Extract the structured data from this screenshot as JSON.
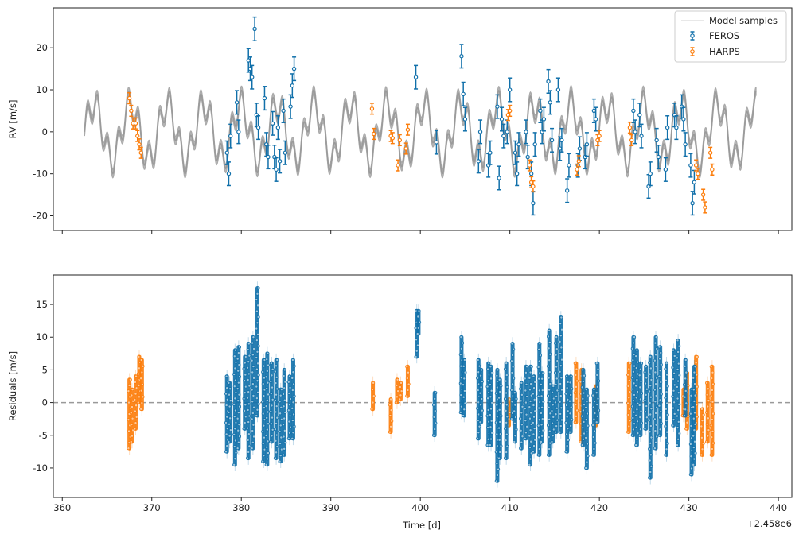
{
  "chart_data": [
    {
      "type": "scatter",
      "panel": "rv",
      "title": "",
      "xlabel": "",
      "ylabel": "RV [m/s]",
      "xlim": [
        359,
        441.5
      ],
      "ylim": [
        -23.5,
        29.5
      ],
      "yticks": [
        -20,
        -10,
        0,
        10,
        20
      ],
      "xticks": [
        360,
        370,
        380,
        390,
        400,
        410,
        420,
        430,
        440
      ],
      "grid": false,
      "legend_position": "top-right",
      "legend": [
        "Model samples",
        "FEROS",
        "HARPS"
      ],
      "series": [
        {
          "name": "FEROS",
          "color": "#1170aa",
          "x": [
            378.4,
            378.6,
            378.8,
            379.5,
            379.7,
            380.8,
            381.0,
            381.2,
            381.5,
            381.7,
            381.9,
            382.6,
            382.8,
            383.0,
            383.5,
            383.7,
            383.9,
            384.1,
            384.3,
            384.7,
            384.9,
            385.5,
            385.7,
            385.9,
            399.5,
            401.8,
            404.6,
            404.8,
            405.0,
            406.5,
            406.7,
            407.6,
            407.8,
            408.6,
            408.8,
            409.1,
            409.3,
            409.7,
            410.0,
            410.6,
            410.8,
            411.0,
            411.8,
            412.0,
            412.4,
            412.6,
            412.8,
            413.4,
            413.6,
            413.8,
            414.3,
            414.5,
            414.7,
            415.4,
            415.6,
            415.8,
            416.4,
            416.6,
            417.6,
            417.8,
            418.4,
            418.6,
            419.4,
            419.6,
            423.8,
            424.0,
            424.5,
            424.7,
            425.5,
            425.7,
            426.4,
            426.6,
            427.4,
            427.6,
            428.4,
            428.6,
            429.2,
            429.4,
            429.6,
            430.2,
            430.4,
            430.6
          ],
          "y": [
            -5.0,
            -10.0,
            -1.0,
            7.0,
            0.0,
            17.0,
            15.0,
            13.0,
            24.5,
            4.0,
            1.0,
            8.0,
            -3.0,
            -6.0,
            2.0,
            -6.0,
            -9.0,
            1.0,
            -7.0,
            5.0,
            -5.0,
            6.0,
            11.0,
            15.0,
            13.0,
            -2.5,
            18.0,
            9.0,
            3.0,
            -7.0,
            0.0,
            -8.0,
            -5.0,
            6.0,
            -11.0,
            3.0,
            -1.0,
            0.0,
            10.0,
            -5.0,
            -10.0,
            -3.0,
            0.0,
            -6.0,
            -10.0,
            -17.0,
            -3.0,
            5.0,
            0.0,
            3.0,
            12.0,
            7.0,
            -2.0,
            10.0,
            -4.0,
            -2.0,
            -14.0,
            -8.0,
            -8.0,
            -4.0,
            -6.0,
            -3.0,
            5.0,
            3.0,
            5.0,
            0.0,
            4.0,
            -1.0,
            -13.0,
            -10.0,
            -2.0,
            -6.0,
            -9.0,
            1.0,
            4.0,
            1.0,
            6.0,
            3.0,
            -3.0,
            -8.0,
            -17.0,
            -12.0
          ],
          "yerr": 2.8
        },
        {
          "name": "HARPS",
          "color": "#fc7d0b",
          "x": [
            367.5,
            367.7,
            367.9,
            368.2,
            368.4,
            368.6,
            368.8,
            394.6,
            394.8,
            396.7,
            396.9,
            397.5,
            397.7,
            398.4,
            398.6,
            409.8,
            410.0,
            412.2,
            412.4,
            412.6,
            417.5,
            417.7,
            419.8,
            420.0,
            423.4,
            423.6,
            430.8,
            431.0,
            431.6,
            431.8,
            432.4,
            432.6
          ],
          "y": [
            8.0,
            5.0,
            2.0,
            2.0,
            -1.0,
            -3.0,
            -5.0,
            5.5,
            -0.5,
            -1.0,
            -1.5,
            -8.0,
            -2.0,
            -4.0,
            0.5,
            4.0,
            5.0,
            -8.0,
            -12.0,
            -13.0,
            -9.0,
            -7.0,
            -2.0,
            -1.0,
            1.0,
            -2.0,
            -8.0,
            -10.0,
            -15.0,
            -18.0,
            -5.0,
            -9.0
          ],
          "yerr": 1.3
        },
        {
          "name": "Model samples",
          "color": "#aaaaaa",
          "x_range": [
            362.5,
            437.5
          ],
          "components": [
            {
              "amplitude_m_s": 6.5,
              "period_d": 4.1
            },
            {
              "amplitude_m_s": 3.5,
              "period_d": 1.15
            }
          ],
          "band_width_m_s": 2.0
        }
      ]
    },
    {
      "type": "scatter",
      "panel": "residuals",
      "title": "",
      "xlabel": "Time [d]",
      "ylabel": "Residuals [m/s]",
      "x_offset_label": "+2.458e6",
      "xlim": [
        359,
        441.5
      ],
      "ylim": [
        -14.5,
        19.5
      ],
      "yticks": [
        -10,
        -5,
        0,
        5,
        10,
        15
      ],
      "xticks": [
        360,
        370,
        380,
        390,
        400,
        410,
        420,
        430,
        440
      ],
      "zero_line": 0,
      "grid": false,
      "series": [
        {
          "name": "FEROS",
          "color": "#1170aa",
          "columns": [
            [
              378.4,
              -7.5,
              4.0
            ],
            [
              378.7,
              -6.0,
              3.0
            ],
            [
              379.3,
              -9.5,
              8.0
            ],
            [
              379.7,
              -7.0,
              8.5
            ],
            [
              380.4,
              -4.0,
              7.0
            ],
            [
              380.8,
              -8.5,
              9.0
            ],
            [
              381.3,
              -7.0,
              10.0
            ],
            [
              381.8,
              -2.0,
              17.5
            ],
            [
              382.5,
              -9.0,
              6.5
            ],
            [
              382.9,
              -9.5,
              7.5
            ],
            [
              383.4,
              -6.0,
              6.0
            ],
            [
              383.9,
              -8.5,
              6.5
            ],
            [
              384.4,
              -9.0,
              2.0
            ],
            [
              384.8,
              -8.0,
              5.0
            ],
            [
              385.4,
              -5.5,
              4.0
            ],
            [
              385.8,
              -5.5,
              6.5
            ],
            [
              399.6,
              7.0,
              14.0
            ],
            [
              399.8,
              10.5,
              14.0
            ],
            [
              401.6,
              -5.0,
              1.5
            ],
            [
              404.6,
              -1.5,
              10.0
            ],
            [
              404.9,
              -2.0,
              6.5
            ],
            [
              406.5,
              -5.5,
              6.5
            ],
            [
              406.8,
              -3.0,
              5.0
            ],
            [
              407.6,
              -6.5,
              6.0
            ],
            [
              407.9,
              -6.5,
              5.5
            ],
            [
              408.6,
              -12.0,
              5.0
            ],
            [
              408.9,
              -8.5,
              3.5
            ],
            [
              409.6,
              -8.5,
              6.0
            ],
            [
              410.3,
              -2.5,
              9.0
            ],
            [
              410.6,
              -6.0,
              1.5
            ],
            [
              411.3,
              -7.0,
              3.0
            ],
            [
              411.8,
              -5.5,
              5.5
            ],
            [
              412.3,
              -9.5,
              5.5
            ],
            [
              412.7,
              -7.5,
              4.0
            ],
            [
              413.3,
              -8.0,
              9.0
            ],
            [
              413.6,
              -6.0,
              4.5
            ],
            [
              414.4,
              -8.0,
              11.0
            ],
            [
              414.8,
              -6.0,
              2.5
            ],
            [
              415.2,
              -4.5,
              10.0
            ],
            [
              415.7,
              -4.5,
              13.0
            ],
            [
              416.4,
              -7.5,
              4.0
            ],
            [
              416.8,
              -4.5,
              4.0
            ],
            [
              418.2,
              -6.5,
              5.0
            ],
            [
              418.6,
              -10.0,
              2.0
            ],
            [
              419.4,
              -8.0,
              2.0
            ],
            [
              419.8,
              -3.0,
              6.0
            ],
            [
              423.8,
              -5.0,
              10.0
            ],
            [
              424.2,
              -6.5,
              8.0
            ],
            [
              424.6,
              -5.0,
              6.0
            ],
            [
              425.2,
              -4.0,
              5.5
            ],
            [
              425.7,
              -11.5,
              7.0
            ],
            [
              426.3,
              -7.0,
              10.0
            ],
            [
              426.8,
              -5.0,
              8.5
            ],
            [
              427.5,
              -8.0,
              6.0
            ],
            [
              428.3,
              -3.5,
              8.0
            ],
            [
              428.8,
              -6.5,
              9.5
            ],
            [
              429.6,
              -2.0,
              6.5
            ],
            [
              430.3,
              -11.0,
              2.0
            ],
            [
              430.6,
              -9.5,
              5.5
            ]
          ]
        },
        {
          "name": "HARPS",
          "color": "#fc7d0b",
          "columns": [
            [
              367.5,
              -7.0,
              3.5
            ],
            [
              367.8,
              -6.0,
              2.0
            ],
            [
              368.2,
              -4.0,
              4.0
            ],
            [
              368.6,
              0.0,
              7.0
            ],
            [
              368.9,
              -1.0,
              6.5
            ],
            [
              394.7,
              -1.0,
              3.0
            ],
            [
              396.7,
              -4.5,
              0.5
            ],
            [
              397.4,
              0.0,
              3.5
            ],
            [
              397.8,
              0.5,
              3.0
            ],
            [
              398.6,
              1.0,
              5.5
            ],
            [
              409.9,
              -3.5,
              0.5
            ],
            [
              417.4,
              -3.0,
              6.0
            ],
            [
              418.0,
              -6.0,
              5.0
            ],
            [
              419.6,
              -3.5,
              2.5
            ],
            [
              423.3,
              -4.5,
              6.0
            ],
            [
              429.4,
              -2.0,
              2.0
            ],
            [
              429.8,
              -4.0,
              4.5
            ],
            [
              430.8,
              -4.0,
              7.0
            ],
            [
              431.5,
              -8.0,
              -1.0
            ],
            [
              432.1,
              -6.0,
              3.0
            ],
            [
              432.6,
              -8.0,
              5.5
            ]
          ]
        }
      ]
    }
  ]
}
